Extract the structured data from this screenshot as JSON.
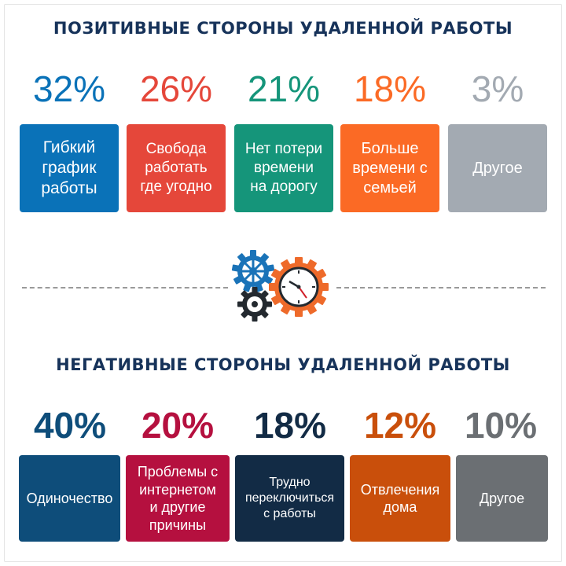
{
  "positive": {
    "title": "ПОЗИТИВНЫЕ СТОРОНЫ УДАЛЕННОЙ РАБОТЫ",
    "items": [
      {
        "percent": "32%",
        "label": "Гибкий\nграфик\nработы",
        "color": "#0a72b8"
      },
      {
        "percent": "26%",
        "label": "Свобода\nработать\nгде угодно",
        "color": "#e5473a"
      },
      {
        "percent": "21%",
        "label": "Нет потери\nвремени\nна дорогу",
        "color": "#15957a"
      },
      {
        "percent": "18%",
        "label": "Больше\nвремени с\nсемьей",
        "color": "#fb6a25"
      },
      {
        "percent": "3%",
        "label": "Другое",
        "color": "#a3aab2"
      }
    ]
  },
  "negative": {
    "title": "НЕГАТИВНЫЕ СТОРОНЫ УДАЛЕННОЙ РАБОТЫ",
    "items": [
      {
        "percent": "40%",
        "label": "Одиночество",
        "color": "#0e4d7a"
      },
      {
        "percent": "20%",
        "label": "Проблемы с\nинтернетом\nи другие\nпричины",
        "color": "#b5103f"
      },
      {
        "percent": "18%",
        "label": "Трудно\nпереключиться\nс работы",
        "color": "#122b45"
      },
      {
        "percent": "12%",
        "label": "Отвлечения\nдома",
        "color": "#c94f0b"
      },
      {
        "percent": "10%",
        "label": "Другое",
        "color": "#6b6f73"
      }
    ]
  },
  "icon": "gears-clock-icon"
}
